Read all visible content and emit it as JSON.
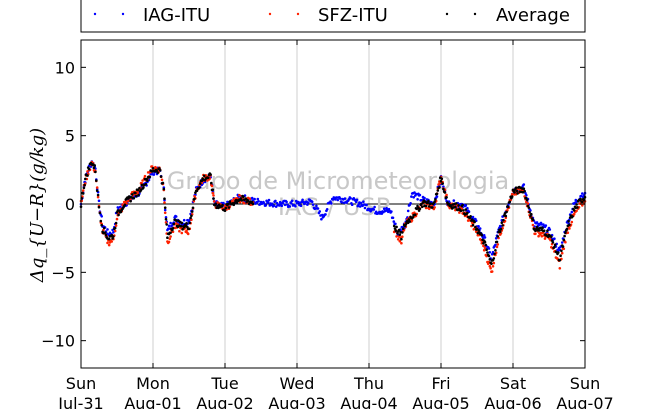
{
  "chart_data": {
    "type": "scatter",
    "ylabel": "Δq_{U−R}(g/kg)",
    "ylim": [
      -12,
      12
    ],
    "yticks": [
      10,
      5,
      0,
      -5,
      -10
    ],
    "grid": "vertical",
    "legend_position": "top",
    "x_ticks": [
      {
        "day": "Sun",
        "date": "Jul-31"
      },
      {
        "day": "Mon",
        "date": "Aug-01"
      },
      {
        "day": "Tue",
        "date": "Aug-02"
      },
      {
        "day": "Wed",
        "date": "Aug-03"
      },
      {
        "day": "Thu",
        "date": "Aug-04"
      },
      {
        "day": "Fri",
        "date": "Aug-05"
      },
      {
        "day": "Sat",
        "date": "Aug-06"
      },
      {
        "day": "Sun",
        "date": "Aug-07"
      }
    ],
    "watermark": [
      "Grupo de Micrometeorologia",
      "IAG / USP"
    ],
    "series": [
      {
        "name": "IAG-ITU",
        "color": "#0000ff",
        "points": [
          [
            0.0,
            0.0
          ],
          [
            0.05,
            1.6
          ],
          [
            0.1,
            2.5
          ],
          [
            0.15,
            3.1
          ],
          [
            0.2,
            2.6
          ],
          [
            0.25,
            0.0
          ],
          [
            0.3,
            -1.5
          ],
          [
            0.38,
            -2.2
          ],
          [
            0.45,
            -2.0
          ],
          [
            0.5,
            -0.5
          ],
          [
            0.6,
            0.0
          ],
          [
            0.7,
            0.4
          ],
          [
            0.8,
            0.8
          ],
          [
            0.9,
            1.5
          ],
          [
            1.0,
            2.4
          ],
          [
            1.1,
            2.4
          ],
          [
            1.15,
            1.0
          ],
          [
            1.2,
            -2.0
          ],
          [
            1.3,
            -1.0
          ],
          [
            1.4,
            -1.4
          ],
          [
            1.5,
            -1.2
          ],
          [
            1.6,
            1.0
          ],
          [
            1.7,
            1.8
          ],
          [
            1.8,
            2.0
          ],
          [
            1.85,
            0.0
          ],
          [
            2.0,
            -0.2
          ],
          [
            2.2,
            0.5
          ],
          [
            2.4,
            0.2
          ],
          [
            2.6,
            0.1
          ],
          [
            2.8,
            0.0
          ],
          [
            3.0,
            0.0
          ],
          [
            3.2,
            0.2
          ],
          [
            3.35,
            -1.0
          ],
          [
            3.5,
            0.5
          ],
          [
            3.7,
            0.3
          ],
          [
            3.9,
            0.0
          ],
          [
            4.1,
            -0.5
          ],
          [
            4.3,
            -0.5
          ],
          [
            4.4,
            -2.2
          ],
          [
            4.5,
            -1.5
          ],
          [
            4.6,
            0.8
          ],
          [
            4.75,
            0.3
          ],
          [
            4.9,
            0.0
          ],
          [
            5.0,
            1.8
          ],
          [
            5.1,
            0.0
          ],
          [
            5.3,
            0.0
          ],
          [
            5.5,
            -1.5
          ],
          [
            5.6,
            -2.5
          ],
          [
            5.7,
            -4.0
          ],
          [
            5.8,
            -2.0
          ],
          [
            6.0,
            1.0
          ],
          [
            6.15,
            1.2
          ],
          [
            6.3,
            -1.5
          ],
          [
            6.4,
            -1.6
          ],
          [
            6.5,
            -2.0
          ],
          [
            6.65,
            -3.5
          ],
          [
            6.75,
            -1.5
          ],
          [
            6.85,
            0.0
          ],
          [
            6.95,
            0.7
          ],
          [
            7.0,
            0.8
          ]
        ]
      },
      {
        "name": "SFZ-ITU",
        "color": "#ff2200",
        "points": [
          [
            0.0,
            0.0
          ],
          [
            0.05,
            1.5
          ],
          [
            0.1,
            2.4
          ],
          [
            0.15,
            3.0
          ],
          [
            0.2,
            2.4
          ],
          [
            0.25,
            -0.3
          ],
          [
            0.3,
            -2.0
          ],
          [
            0.38,
            -2.8
          ],
          [
            0.45,
            -2.6
          ],
          [
            0.5,
            -1.0
          ],
          [
            0.6,
            0.0
          ],
          [
            0.7,
            0.6
          ],
          [
            0.8,
            1.0
          ],
          [
            0.9,
            1.9
          ],
          [
            1.0,
            2.7
          ],
          [
            1.1,
            2.5
          ],
          [
            1.15,
            1.0
          ],
          [
            1.2,
            -2.8
          ],
          [
            1.3,
            -1.6
          ],
          [
            1.4,
            -1.9
          ],
          [
            1.5,
            -2.0
          ],
          [
            1.6,
            1.0
          ],
          [
            1.7,
            1.9
          ],
          [
            1.8,
            2.0
          ],
          [
            1.85,
            0.0
          ],
          [
            2.0,
            -0.3
          ],
          [
            2.2,
            0.4
          ],
          [
            2.4,
            0.1
          ],
          [
            4.35,
            -1.8
          ],
          [
            4.45,
            -2.8
          ],
          [
            4.5,
            -1.6
          ],
          [
            4.75,
            0.0
          ],
          [
            4.9,
            -0.3
          ],
          [
            5.0,
            2.0
          ],
          [
            5.1,
            0.0
          ],
          [
            5.3,
            -0.5
          ],
          [
            5.5,
            -2.0
          ],
          [
            5.6,
            -3.2
          ],
          [
            5.7,
            -5.0
          ],
          [
            5.8,
            -2.5
          ],
          [
            6.0,
            0.8
          ],
          [
            6.15,
            1.0
          ],
          [
            6.3,
            -2.0
          ],
          [
            6.4,
            -2.2
          ],
          [
            6.5,
            -2.5
          ],
          [
            6.65,
            -4.5
          ],
          [
            6.75,
            -2.0
          ],
          [
            6.85,
            -0.8
          ],
          [
            6.95,
            0.0
          ],
          [
            7.0,
            0.2
          ]
        ]
      },
      {
        "name": "Average",
        "color": "#000000",
        "points": [
          [
            0.0,
            0.0
          ],
          [
            0.05,
            1.6
          ],
          [
            0.1,
            2.5
          ],
          [
            0.15,
            3.1
          ],
          [
            0.2,
            2.5
          ],
          [
            0.25,
            -0.2
          ],
          [
            0.3,
            -1.8
          ],
          [
            0.38,
            -2.5
          ],
          [
            0.45,
            -2.3
          ],
          [
            0.5,
            -0.8
          ],
          [
            0.6,
            0.0
          ],
          [
            0.7,
            0.5
          ],
          [
            0.8,
            0.9
          ],
          [
            0.9,
            1.7
          ],
          [
            1.0,
            2.5
          ],
          [
            1.1,
            2.5
          ],
          [
            1.15,
            1.0
          ],
          [
            1.2,
            -2.4
          ],
          [
            1.3,
            -1.3
          ],
          [
            1.4,
            -1.6
          ],
          [
            1.5,
            -1.6
          ],
          [
            1.6,
            1.0
          ],
          [
            1.7,
            1.9
          ],
          [
            1.8,
            2.0
          ],
          [
            1.85,
            0.0
          ],
          [
            2.0,
            -0.3
          ],
          [
            2.2,
            0.4
          ],
          [
            2.4,
            0.1
          ],
          [
            4.35,
            -1.6
          ],
          [
            4.45,
            -2.4
          ],
          [
            4.5,
            -1.5
          ],
          [
            4.75,
            0.1
          ],
          [
            4.9,
            -0.1
          ],
          [
            5.0,
            1.9
          ],
          [
            5.1,
            0.0
          ],
          [
            5.3,
            -0.3
          ],
          [
            5.5,
            -1.8
          ],
          [
            5.6,
            -2.8
          ],
          [
            5.7,
            -4.5
          ],
          [
            5.8,
            -2.2
          ],
          [
            6.0,
            0.9
          ],
          [
            6.15,
            1.1
          ],
          [
            6.3,
            -1.8
          ],
          [
            6.4,
            -1.9
          ],
          [
            6.5,
            -2.2
          ],
          [
            6.65,
            -4.0
          ],
          [
            6.75,
            -1.8
          ],
          [
            6.85,
            -0.4
          ],
          [
            6.95,
            0.3
          ],
          [
            7.0,
            0.5
          ]
        ]
      }
    ]
  }
}
